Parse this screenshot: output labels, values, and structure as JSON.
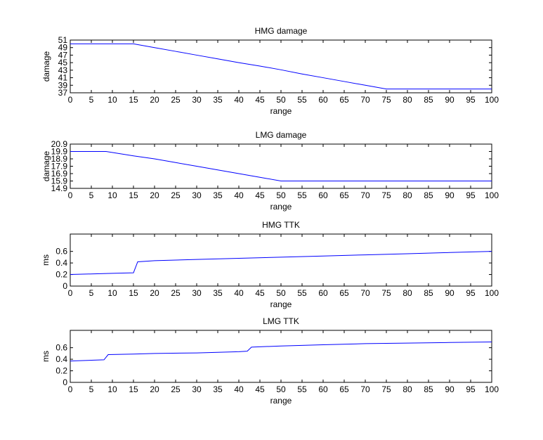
{
  "figure": {
    "background": "#ffffff",
    "line_color": "#0000ff",
    "axis_color": "#000000"
  },
  "chart_data": [
    {
      "type": "line",
      "title": "HMG damage",
      "xlabel": "range",
      "ylabel": "damage",
      "xlim": [
        0,
        100
      ],
      "ylim": [
        37,
        51
      ],
      "xticks": [
        "0",
        "5",
        "10",
        "15",
        "20",
        "25",
        "30",
        "35",
        "40",
        "45",
        "50",
        "55",
        "60",
        "65",
        "70",
        "75",
        "80",
        "85",
        "90",
        "95",
        "100"
      ],
      "yticks": [
        "37",
        "39",
        "41",
        "43",
        "45",
        "47",
        "49",
        "51"
      ],
      "grid": false,
      "series": [
        {
          "x": [
            0,
            15,
            20,
            25,
            30,
            35,
            40,
            45,
            50,
            55,
            60,
            65,
            70,
            75,
            100
          ],
          "y": [
            50,
            50,
            49.0,
            48.0,
            47.0,
            46.0,
            45.0,
            44.1,
            43.1,
            42.0,
            41.0,
            40.0,
            39.0,
            38.0,
            38.0
          ]
        }
      ]
    },
    {
      "type": "line",
      "title": "LMG damage",
      "xlabel": "range",
      "ylabel": "damage",
      "xlim": [
        0,
        100
      ],
      "ylim": [
        14.9,
        20.9
      ],
      "xticks": [
        "0",
        "5",
        "10",
        "15",
        "20",
        "25",
        "30",
        "35",
        "40",
        "45",
        "50",
        "55",
        "60",
        "65",
        "70",
        "75",
        "80",
        "85",
        "90",
        "95",
        "100"
      ],
      "yticks": [
        "14.9",
        "15.9",
        "16.9",
        "17.9",
        "18.9",
        "19.9",
        "20.9"
      ],
      "grid": false,
      "series": [
        {
          "x": [
            0,
            8.5,
            15,
            20,
            25,
            30,
            35,
            40,
            45,
            50,
            100
          ],
          "y": [
            19.9,
            19.9,
            19.3,
            18.9,
            18.4,
            17.9,
            17.4,
            16.9,
            16.4,
            15.9,
            15.9
          ]
        }
      ]
    },
    {
      "type": "line",
      "title": "HMG TTK",
      "xlabel": "range",
      "ylabel": "ms",
      "xlim": [
        0,
        100
      ],
      "ylim": [
        0,
        0.9
      ],
      "xticks": [
        "0",
        "5",
        "10",
        "15",
        "20",
        "25",
        "30",
        "35",
        "40",
        "45",
        "50",
        "55",
        "60",
        "65",
        "70",
        "75",
        "80",
        "85",
        "90",
        "95",
        "100"
      ],
      "yticks": [
        "0",
        "0.2",
        "0.4",
        "0.6"
      ],
      "grid": false,
      "series": [
        {
          "x": [
            0,
            5,
            10,
            15,
            16,
            20,
            30,
            40,
            50,
            60,
            70,
            80,
            90,
            100
          ],
          "y": [
            0.2,
            0.21,
            0.22,
            0.23,
            0.42,
            0.44,
            0.46,
            0.48,
            0.5,
            0.52,
            0.54,
            0.56,
            0.58,
            0.6
          ]
        }
      ]
    },
    {
      "type": "line",
      "title": "LMG TTK",
      "xlabel": "range",
      "ylabel": "ms",
      "xlim": [
        0,
        100
      ],
      "ylim": [
        0,
        0.9
      ],
      "xticks": [
        "0",
        "5",
        "10",
        "15",
        "20",
        "25",
        "30",
        "35",
        "40",
        "45",
        "50",
        "55",
        "60",
        "65",
        "70",
        "75",
        "80",
        "85",
        "90",
        "95",
        "100"
      ],
      "yticks": [
        "0",
        "0.2",
        "0.4",
        "0.6"
      ],
      "grid": false,
      "series": [
        {
          "x": [
            0,
            8,
            9,
            15,
            20,
            30,
            40,
            42,
            43,
            50,
            60,
            70,
            80,
            90,
            100
          ],
          "y": [
            0.37,
            0.39,
            0.48,
            0.49,
            0.5,
            0.51,
            0.53,
            0.54,
            0.61,
            0.63,
            0.65,
            0.67,
            0.68,
            0.69,
            0.7
          ]
        }
      ]
    }
  ]
}
